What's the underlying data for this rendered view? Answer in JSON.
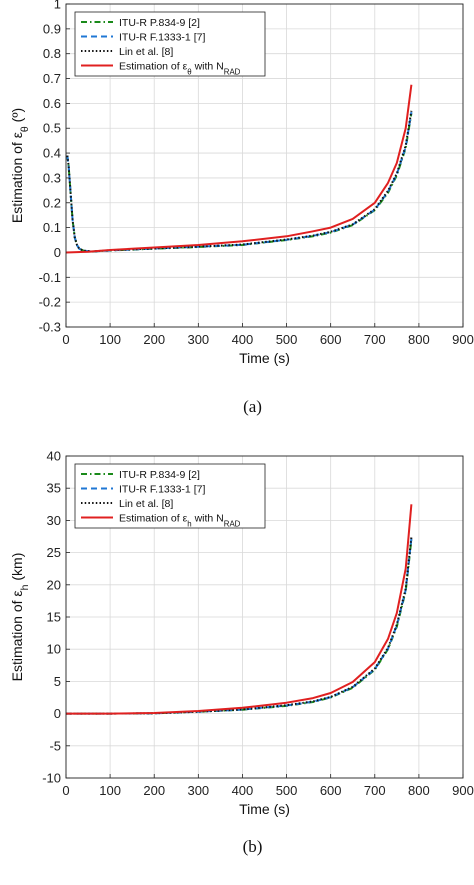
{
  "chart_data": [
    {
      "type": "line",
      "caption": "(a)",
      "xlabel": "Time (s)",
      "ylabel": "Estimation of ε_θ (º)",
      "xlim": [
        0,
        900
      ],
      "ylim": [
        -0.3,
        1
      ],
      "xticks": [
        "0",
        "100",
        "200",
        "300",
        "400",
        "500",
        "600",
        "700",
        "800",
        "900"
      ],
      "yticks": [
        "-0.3",
        "-0.2",
        "-0.1",
        "0",
        "0.1",
        "0.2",
        "0.3",
        "0.4",
        "0.5",
        "0.6",
        "0.7",
        "0.8",
        "0.9",
        "1"
      ],
      "grid": true,
      "legend_position": "top-left",
      "series": [
        {
          "name": "ITU-R P.834-9 [2]",
          "color": "#1a8a1a",
          "dash": "dashdot",
          "points": [
            [
              3,
              0.39
            ],
            [
              6,
              0.35
            ],
            [
              10,
              0.25
            ],
            [
              15,
              0.13
            ],
            [
              20,
              0.06
            ],
            [
              25,
              0.03
            ],
            [
              30,
              0.015
            ],
            [
              40,
              0.007
            ],
            [
              60,
              0.004
            ],
            [
              100,
              0.008
            ],
            [
              200,
              0.015
            ],
            [
              300,
              0.022
            ],
            [
              400,
              0.03
            ],
            [
              500,
              0.05
            ],
            [
              560,
              0.065
            ],
            [
              600,
              0.08
            ],
            [
              650,
              0.11
            ],
            [
              700,
              0.17
            ],
            [
              730,
              0.24
            ],
            [
              750,
              0.31
            ],
            [
              770,
              0.42
            ],
            [
              783,
              0.56
            ]
          ]
        },
        {
          "name": "ITU-R F.1333-1 [7]",
          "color": "#1f77d4",
          "dash": "dashed",
          "points": [
            [
              3,
              0.39
            ],
            [
              6,
              0.35
            ],
            [
              10,
              0.25
            ],
            [
              15,
              0.13
            ],
            [
              20,
              0.06
            ],
            [
              25,
              0.03
            ],
            [
              30,
              0.015
            ],
            [
              40,
              0.007
            ],
            [
              60,
              0.004
            ],
            [
              100,
              0.008
            ],
            [
              200,
              0.016
            ],
            [
              300,
              0.023
            ],
            [
              400,
              0.031
            ],
            [
              500,
              0.051
            ],
            [
              560,
              0.067
            ],
            [
              600,
              0.082
            ],
            [
              650,
              0.112
            ],
            [
              700,
              0.172
            ],
            [
              730,
              0.245
            ],
            [
              750,
              0.315
            ],
            [
              770,
              0.425
            ],
            [
              783,
              0.565
            ]
          ]
        },
        {
          "name": "Lin et al. [8]",
          "color": "#111111",
          "dash": "dotted",
          "points": [
            [
              3,
              0.39
            ],
            [
              6,
              0.35
            ],
            [
              10,
              0.25
            ],
            [
              15,
              0.13
            ],
            [
              20,
              0.06
            ],
            [
              25,
              0.03
            ],
            [
              30,
              0.015
            ],
            [
              40,
              0.007
            ],
            [
              60,
              0.004
            ],
            [
              100,
              0.009
            ],
            [
              200,
              0.016
            ],
            [
              300,
              0.023
            ],
            [
              400,
              0.032
            ],
            [
              500,
              0.052
            ],
            [
              560,
              0.068
            ],
            [
              600,
              0.083
            ],
            [
              650,
              0.113
            ],
            [
              700,
              0.174
            ],
            [
              730,
              0.248
            ],
            [
              750,
              0.318
            ],
            [
              770,
              0.43
            ],
            [
              783,
              0.57
            ]
          ]
        },
        {
          "name": "Estimation of ε_θ with N_RAD",
          "color": "#e02020",
          "dash": "solid",
          "points": [
            [
              0,
              0.0
            ],
            [
              50,
              0.003
            ],
            [
              100,
              0.01
            ],
            [
              200,
              0.02
            ],
            [
              300,
              0.03
            ],
            [
              400,
              0.045
            ],
            [
              500,
              0.065
            ],
            [
              560,
              0.085
            ],
            [
              600,
              0.1
            ],
            [
              650,
              0.135
            ],
            [
              700,
              0.2
            ],
            [
              730,
              0.28
            ],
            [
              750,
              0.36
            ],
            [
              770,
              0.5
            ],
            [
              783,
              0.675
            ]
          ]
        }
      ]
    },
    {
      "type": "line",
      "caption": "(b)",
      "xlabel": "Time (s)",
      "ylabel": "Estimation of ε_h (km)",
      "xlim": [
        0,
        900
      ],
      "ylim": [
        -10,
        40
      ],
      "xticks": [
        "0",
        "100",
        "200",
        "300",
        "400",
        "500",
        "600",
        "700",
        "800",
        "900"
      ],
      "yticks": [
        "-10",
        "-5",
        "0",
        "5",
        "10",
        "15",
        "20",
        "25",
        "30",
        "35",
        "40"
      ],
      "grid": true,
      "legend_position": "top-left",
      "series": [
        {
          "name": "ITU-R P.834-9 [2]",
          "color": "#1a8a1a",
          "dash": "dashdot",
          "points": [
            [
              0,
              0
            ],
            [
              100,
              0.0
            ],
            [
              200,
              0.05
            ],
            [
              300,
              0.3
            ],
            [
              400,
              0.6
            ],
            [
              500,
              1.2
            ],
            [
              560,
              1.8
            ],
            [
              600,
              2.5
            ],
            [
              650,
              4.0
            ],
            [
              700,
              6.8
            ],
            [
              730,
              10.0
            ],
            [
              750,
              13.5
            ],
            [
              770,
              19.0
            ],
            [
              783,
              27.0
            ]
          ]
        },
        {
          "name": "ITU-R F.1333-1 [7]",
          "color": "#1f77d4",
          "dash": "dashed",
          "points": [
            [
              0,
              0
            ],
            [
              100,
              0.0
            ],
            [
              200,
              0.05
            ],
            [
              300,
              0.3
            ],
            [
              400,
              0.62
            ],
            [
              500,
              1.25
            ],
            [
              560,
              1.85
            ],
            [
              600,
              2.55
            ],
            [
              650,
              4.1
            ],
            [
              700,
              6.9
            ],
            [
              730,
              10.1
            ],
            [
              750,
              13.7
            ],
            [
              770,
              19.2
            ],
            [
              783,
              27.2
            ]
          ]
        },
        {
          "name": "Lin et al. [8]",
          "color": "#111111",
          "dash": "dotted",
          "points": [
            [
              0,
              0
            ],
            [
              100,
              0.0
            ],
            [
              200,
              0.05
            ],
            [
              300,
              0.3
            ],
            [
              400,
              0.64
            ],
            [
              500,
              1.3
            ],
            [
              560,
              1.9
            ],
            [
              600,
              2.6
            ],
            [
              650,
              4.15
            ],
            [
              700,
              7.0
            ],
            [
              730,
              10.2
            ],
            [
              750,
              13.8
            ],
            [
              770,
              19.4
            ],
            [
              783,
              27.4
            ]
          ]
        },
        {
          "name": "Estimation of ε_h with N_RAD",
          "color": "#e02020",
          "dash": "solid",
          "points": [
            [
              0,
              0
            ],
            [
              100,
              0.0
            ],
            [
              200,
              0.1
            ],
            [
              300,
              0.4
            ],
            [
              400,
              0.9
            ],
            [
              500,
              1.7
            ],
            [
              560,
              2.4
            ],
            [
              600,
              3.2
            ],
            [
              650,
              4.9
            ],
            [
              700,
              8.0
            ],
            [
              730,
              11.6
            ],
            [
              750,
              15.6
            ],
            [
              770,
              22.5
            ],
            [
              783,
              32.5
            ]
          ]
        }
      ]
    }
  ]
}
